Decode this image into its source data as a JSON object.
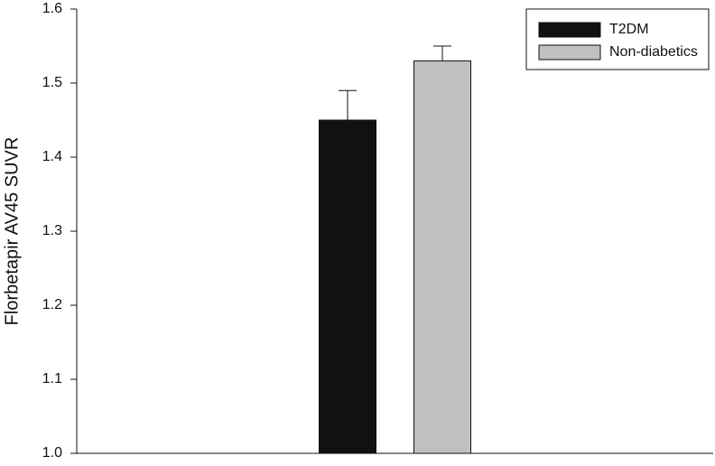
{
  "chart_data": {
    "type": "bar",
    "y_label": "Florbetapir AV45 SUVR",
    "categories": [
      null
    ],
    "series": [
      {
        "name": "T2DM",
        "color": "#111111",
        "values": [
          1.45
        ],
        "errors": [
          0.04
        ]
      },
      {
        "name": "Non-diabetics",
        "color": "#c0c0c0",
        "values": [
          1.53
        ],
        "errors": [
          0.02
        ]
      }
    ],
    "ylim": [
      1.0,
      1.6
    ],
    "yticks": [
      {
        "value": 1.0,
        "label": "1.0"
      },
      1.1,
      1.2,
      1.3,
      1.4,
      1.5,
      1.6
    ],
    "legend": "upper right"
  }
}
